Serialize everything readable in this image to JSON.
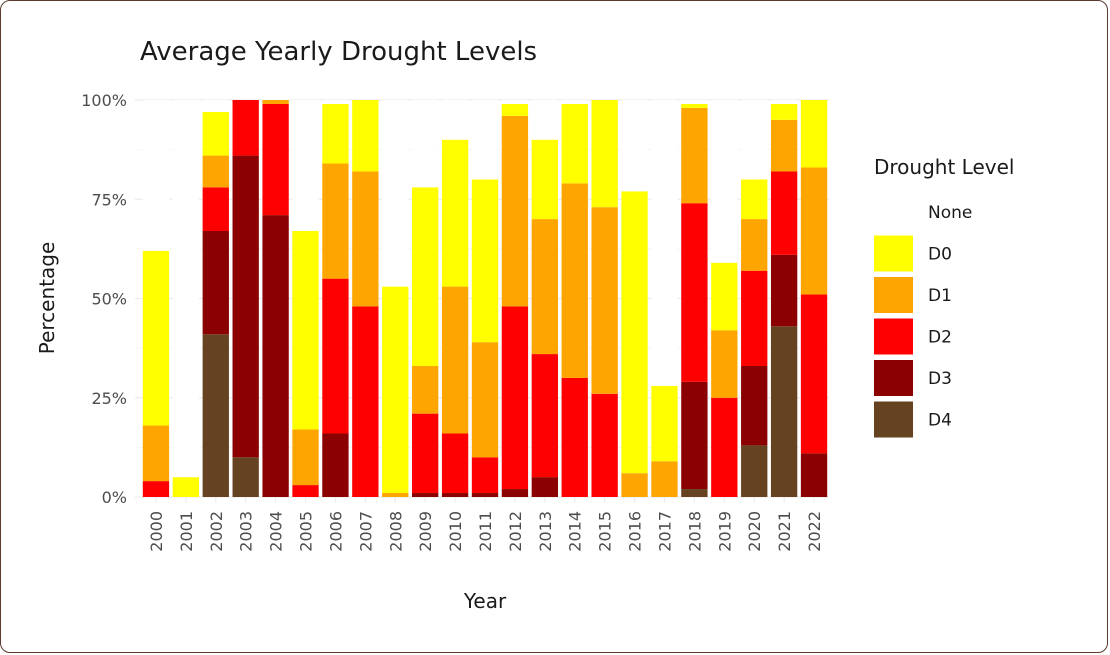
{
  "chart_data": {
    "type": "bar",
    "stacked": true,
    "title": "Average Yearly Drought Levels",
    "xlabel": "Year",
    "ylabel": "Percentage",
    "ylim": [
      0,
      100
    ],
    "y_ticks": [
      "0%",
      "25%",
      "50%",
      "75%",
      "100%"
    ],
    "y_tick_values": [
      0,
      25,
      50,
      75,
      100
    ],
    "legend_title": "Drought Level",
    "legend_position": "right",
    "grid": true,
    "categories": [
      "2000",
      "2001",
      "2002",
      "2003",
      "2004",
      "2005",
      "2006",
      "2007",
      "2008",
      "2009",
      "2010",
      "2011",
      "2012",
      "2013",
      "2014",
      "2015",
      "2016",
      "2017",
      "2018",
      "2019",
      "2020",
      "2021",
      "2022"
    ],
    "series": [
      {
        "name": "D4",
        "color": "#654321",
        "values": [
          0,
          0,
          41,
          10,
          0,
          0,
          0,
          0,
          0,
          0,
          0,
          0,
          0,
          0,
          0,
          0,
          0,
          0,
          2,
          0,
          13,
          43,
          0
        ]
      },
      {
        "name": "D3",
        "color": "#8b0000",
        "values": [
          0,
          0,
          26,
          76,
          71,
          0,
          16,
          0,
          0,
          1,
          1,
          1,
          2,
          5,
          0,
          0,
          0,
          0,
          27,
          0,
          20,
          18,
          11
        ]
      },
      {
        "name": "D2",
        "color": "#ff0000",
        "values": [
          4,
          0,
          11,
          14,
          28,
          3,
          39,
          48,
          0,
          20,
          15,
          9,
          46,
          31,
          30,
          26,
          0,
          0,
          45,
          25,
          24,
          21,
          40
        ]
      },
      {
        "name": "D1",
        "color": "#ffa500",
        "values": [
          14,
          0,
          8,
          0,
          1,
          14,
          29,
          34,
          1,
          12,
          37,
          29,
          48,
          34,
          49,
          47,
          6,
          9,
          24,
          17,
          13,
          13,
          32
        ]
      },
      {
        "name": "D0",
        "color": "#ffff00",
        "values": [
          44,
          5,
          11,
          0,
          0,
          50,
          15,
          18,
          52,
          45,
          37,
          41,
          3,
          20,
          20,
          27,
          71,
          19,
          1,
          17,
          10,
          4,
          17
        ]
      },
      {
        "name": "None",
        "color": "#ffffff",
        "values": [
          38,
          95,
          3,
          0,
          1,
          33,
          1,
          0,
          47,
          22,
          10,
          20,
          1,
          10,
          1,
          0,
          23,
          72,
          1,
          41,
          20,
          1,
          0
        ]
      }
    ]
  }
}
